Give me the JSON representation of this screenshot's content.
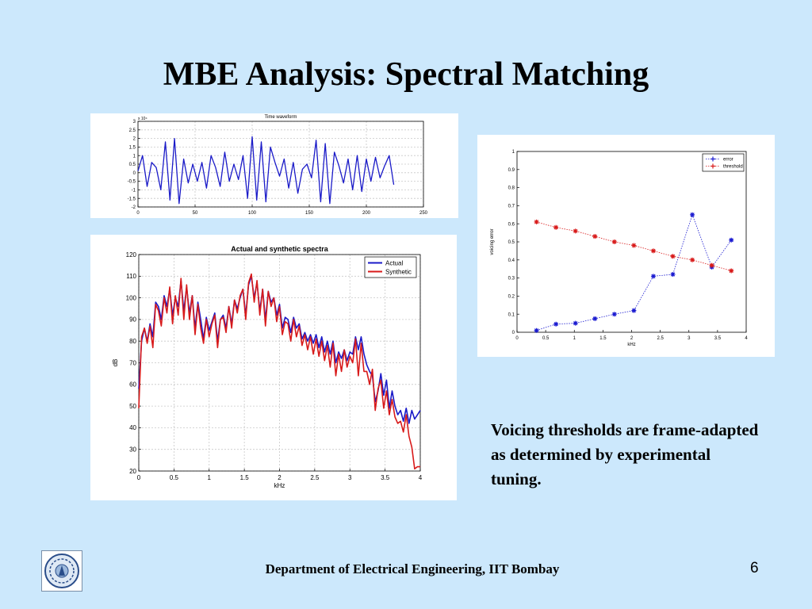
{
  "slide": {
    "title": "MBE Analysis: Spectral Matching",
    "note": "Voicing thresholds are frame-adapted as determined by experimental tuning.",
    "footer": "Department of Electrical Engineering, IIT Bombay",
    "page_number": "6",
    "logo_icon": "iit-bombay-seal-icon"
  },
  "chart_data": [
    {
      "id": "waveform",
      "type": "line",
      "title": "Time waveform",
      "exponent_label": "x 10⁴",
      "xlim": [
        0,
        250
      ],
      "ylim": [
        -2,
        3
      ],
      "xticks": [
        0,
        50,
        100,
        150,
        200,
        250
      ],
      "yticks": [
        -2,
        -1.5,
        -1,
        -0.5,
        0,
        0.5,
        1,
        1.5,
        2,
        2.5,
        3
      ],
      "grid": true,
      "series": [
        {
          "color": "#1a1ac8",
          "x": [
            0,
            4,
            8,
            12,
            16,
            20,
            24,
            28,
            32,
            36,
            40,
            44,
            48,
            52,
            56,
            60,
            64,
            68,
            72,
            76,
            80,
            84,
            88,
            92,
            96,
            100,
            104,
            108,
            112,
            116,
            120,
            124,
            128,
            132,
            136,
            140,
            144,
            148,
            152,
            156,
            160,
            164,
            168,
            172,
            176,
            180,
            184,
            188,
            192,
            196,
            200,
            204,
            208,
            212,
            216,
            220,
            224
          ],
          "y": [
            0.1,
            1,
            -0.8,
            0.6,
            0.3,
            -1,
            1.8,
            -1.6,
            2,
            -1.8,
            0.8,
            -0.6,
            0.5,
            -0.5,
            0.6,
            -0.9,
            1,
            0.3,
            -0.8,
            1.2,
            -0.5,
            0.5,
            -0.4,
            1,
            -1.5,
            2.1,
            -1.6,
            1.8,
            -1.7,
            1.5,
            0.6,
            -0.2,
            0.8,
            -0.9,
            0.6,
            -1.2,
            0.2,
            0.5,
            -0.3,
            1.9,
            -1.7,
            1.7,
            -1.8,
            1.2,
            0.4,
            -0.6,
            0.8,
            -1,
            1,
            -1.1,
            0.8,
            -0.5,
            0.9,
            -0.3,
            0.4,
            1,
            -0.7
          ]
        }
      ]
    },
    {
      "id": "spectra",
      "type": "line",
      "title": "Actual and synthetic spectra",
      "xlabel": "kHz",
      "ylabel": "dB",
      "xlim": [
        0,
        4
      ],
      "ylim": [
        20,
        120
      ],
      "xticks": [
        0,
        0.5,
        1,
        1.5,
        2,
        2.5,
        3,
        3.5,
        4
      ],
      "xtick_labels": [
        "0",
        "0.5",
        "1",
        "1.5",
        "2",
        "2.5",
        "3",
        "3.5",
        "4"
      ],
      "yticks": [
        20,
        30,
        40,
        50,
        60,
        70,
        80,
        90,
        100,
        110,
        120
      ],
      "grid": true,
      "legend_position": "top-right",
      "series": [
        {
          "name": "Actual",
          "color": "#1a1ac8",
          "x": [
            0,
            0.04,
            0.08,
            0.12,
            0.16,
            0.2,
            0.24,
            0.28,
            0.32,
            0.36,
            0.4,
            0.44,
            0.48,
            0.52,
            0.56,
            0.6,
            0.64,
            0.68,
            0.72,
            0.76,
            0.8,
            0.84,
            0.88,
            0.92,
            0.96,
            1,
            1.04,
            1.08,
            1.12,
            1.16,
            1.2,
            1.24,
            1.28,
            1.32,
            1.36,
            1.4,
            1.44,
            1.48,
            1.52,
            1.56,
            1.6,
            1.64,
            1.68,
            1.72,
            1.76,
            1.8,
            1.84,
            1.88,
            1.92,
            1.96,
            2,
            2.04,
            2.08,
            2.12,
            2.16,
            2.2,
            2.24,
            2.28,
            2.32,
            2.36,
            2.4,
            2.44,
            2.48,
            2.52,
            2.56,
            2.6,
            2.64,
            2.68,
            2.72,
            2.76,
            2.8,
            2.84,
            2.88,
            2.92,
            2.96,
            3,
            3.04,
            3.08,
            3.12,
            3.16,
            3.2,
            3.24,
            3.28,
            3.32,
            3.36,
            3.4,
            3.44,
            3.48,
            3.52,
            3.56,
            3.6,
            3.64,
            3.68,
            3.72,
            3.76,
            3.8,
            3.84,
            3.88,
            3.92,
            3.96,
            4
          ],
          "y": [
            58,
            80,
            86,
            80,
            88,
            82,
            98,
            96,
            90,
            101,
            96,
            104,
            92,
            100,
            96,
            108,
            94,
            105,
            93,
            101,
            86,
            98,
            90,
            81,
            91,
            85,
            89,
            93,
            80,
            90,
            92,
            86,
            96,
            88,
            99,
            95,
            100,
            104,
            92,
            106,
            110,
            100,
            107,
            94,
            104,
            90,
            103,
            98,
            100,
            92,
            97,
            86,
            91,
            90,
            84,
            91,
            86,
            88,
            81,
            84,
            80,
            83,
            79,
            83,
            77,
            82,
            75,
            80,
            74,
            80,
            70,
            75,
            72,
            76,
            71,
            75,
            74,
            82,
            76,
            82,
            74,
            69,
            66,
            64,
            52,
            57,
            65,
            55,
            62,
            49,
            57,
            50,
            46,
            48,
            43,
            49,
            42,
            48,
            44,
            46,
            48
          ]
        },
        {
          "name": "Synthetic",
          "color": "#d81a1a",
          "x": [
            0,
            0.04,
            0.08,
            0.12,
            0.16,
            0.2,
            0.24,
            0.28,
            0.32,
            0.36,
            0.4,
            0.44,
            0.48,
            0.52,
            0.56,
            0.6,
            0.64,
            0.68,
            0.72,
            0.76,
            0.8,
            0.84,
            0.88,
            0.92,
            0.96,
            1,
            1.04,
            1.08,
            1.12,
            1.16,
            1.2,
            1.24,
            1.28,
            1.32,
            1.36,
            1.4,
            1.44,
            1.48,
            1.52,
            1.56,
            1.6,
            1.64,
            1.68,
            1.72,
            1.76,
            1.8,
            1.84,
            1.88,
            1.92,
            1.96,
            2,
            2.04,
            2.08,
            2.12,
            2.16,
            2.2,
            2.24,
            2.28,
            2.32,
            2.36,
            2.4,
            2.44,
            2.48,
            2.52,
            2.56,
            2.6,
            2.64,
            2.68,
            2.72,
            2.76,
            2.8,
            2.84,
            2.88,
            2.92,
            2.96,
            3,
            3.04,
            3.08,
            3.12,
            3.16,
            3.2,
            3.24,
            3.28,
            3.32,
            3.36,
            3.4,
            3.44,
            3.48,
            3.52,
            3.56,
            3.6,
            3.64,
            3.68,
            3.72,
            3.76,
            3.8,
            3.84,
            3.88,
            3.92,
            3.96,
            4
          ],
          "y": [
            49,
            82,
            86,
            79,
            87,
            77,
            97,
            94,
            87,
            100,
            93,
            105,
            88,
            101,
            92,
            109,
            90,
            106,
            90,
            101,
            83,
            97,
            86,
            79,
            90,
            82,
            88,
            92,
            77,
            90,
            91,
            84,
            96,
            86,
            99,
            93,
            101,
            104,
            90,
            107,
            111,
            98,
            108,
            92,
            104,
            87,
            103,
            96,
            100,
            89,
            96,
            83,
            89,
            88,
            80,
            90,
            82,
            87,
            78,
            83,
            76,
            82,
            74,
            81,
            73,
            80,
            71,
            78,
            68,
            79,
            64,
            74,
            66,
            76,
            68,
            73,
            70,
            81,
            64,
            79,
            66,
            66,
            60,
            67,
            48,
            58,
            62,
            49,
            57,
            46,
            53,
            45,
            42,
            43,
            38,
            46,
            36,
            31,
            21,
            22,
            22
          ]
        }
      ]
    },
    {
      "id": "voicing",
      "type": "line",
      "xlabel": "kHz",
      "ylabel": "voicing error",
      "xlim": [
        0,
        4
      ],
      "ylim": [
        0,
        1
      ],
      "xticks": [
        0,
        0.5,
        1,
        1.5,
        2,
        2.5,
        3,
        3.5,
        4
      ],
      "xtick_labels": [
        "0",
        "0.5",
        "1",
        "1.5",
        "2",
        "2.5",
        "3",
        "3.5",
        "4"
      ],
      "yticks": [
        0,
        0.1,
        0.2,
        0.3,
        0.4,
        0.5,
        0.6,
        0.7,
        0.8,
        0.9,
        1
      ],
      "ytick_labels": [
        "0",
        "0.1",
        "0.2",
        "0.3",
        "0.4",
        "0.5",
        "0.6",
        "0.7",
        "0.8",
        "0.9",
        "1"
      ],
      "grid": false,
      "legend_position": "top-right",
      "series": [
        {
          "name": "error",
          "color": "#1a1ad0",
          "x": [
            0.34,
            0.68,
            1.02,
            1.36,
            1.7,
            2.04,
            2.38,
            2.72,
            3.06,
            3.4,
            3.74
          ],
          "y": [
            0.01,
            0.045,
            0.05,
            0.075,
            0.1,
            0.12,
            0.31,
            0.32,
            0.65,
            0.36,
            0.51
          ]
        },
        {
          "name": "threshold",
          "color": "#d81a1a",
          "x": [
            0.34,
            0.68,
            1.02,
            1.36,
            1.7,
            2.04,
            2.38,
            2.72,
            3.06,
            3.4,
            3.74
          ],
          "y": [
            0.61,
            0.58,
            0.56,
            0.53,
            0.5,
            0.48,
            0.45,
            0.42,
            0.4,
            0.37,
            0.34
          ]
        }
      ]
    }
  ]
}
